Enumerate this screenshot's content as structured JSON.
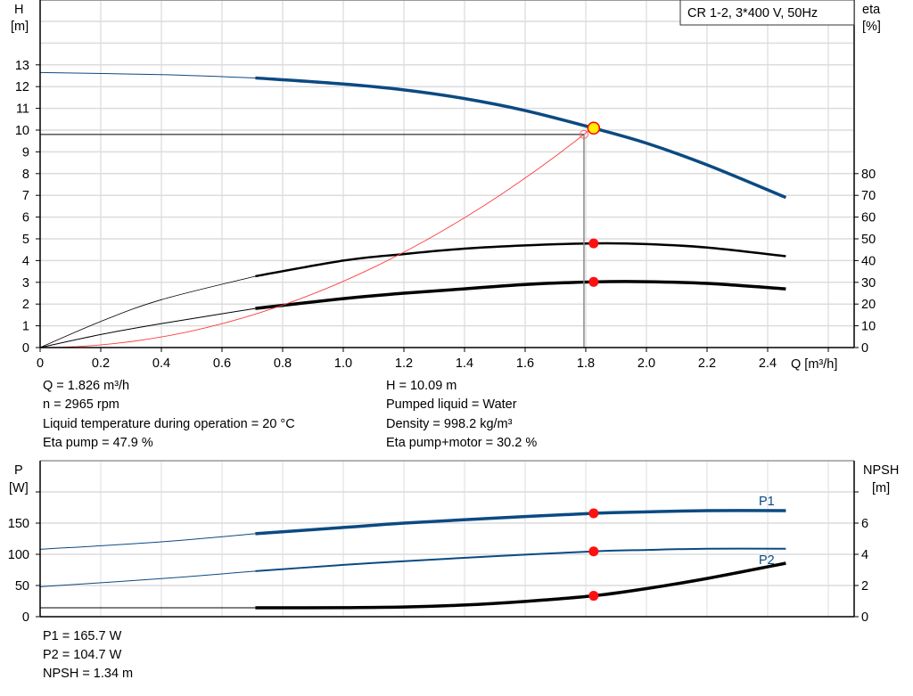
{
  "chart_data": [
    {
      "type": "line",
      "title": "CR 1-2, 3*400 V, 50Hz",
      "xlabel": "Q [m³/h]",
      "ylabel_left": [
        "H",
        "[m]"
      ],
      "ylabel_right": [
        "eta",
        "[%]"
      ],
      "xlim": [
        0,
        2.69
      ],
      "ylim_left": [
        0,
        16
      ],
      "ylim_right": [
        0,
        160
      ],
      "x_ticks": [
        "0",
        "0.2",
        "0.4",
        "0.6",
        "0.8",
        "1.0",
        "1.2",
        "1.4",
        "1.6",
        "1.8",
        "2.0",
        "2.2",
        "2.4"
      ],
      "y_ticks_left": [
        "0",
        "1",
        "2",
        "3",
        "4",
        "5",
        "6",
        "7",
        "8",
        "9",
        "10",
        "11",
        "12",
        "13"
      ],
      "y_ticks_right": [
        "0",
        "10",
        "20",
        "30",
        "40",
        "50",
        "60",
        "70",
        "80"
      ],
      "grid": true,
      "thick_from_q": 0.71,
      "series": [
        {
          "key": "H",
          "axis": "left",
          "color": "#0b4a82",
          "points": [
            [
              0,
              12.65
            ],
            [
              0.4,
              12.55
            ],
            [
              0.71,
              12.4
            ],
            [
              1.0,
              12.12
            ],
            [
              1.2,
              11.85
            ],
            [
              1.4,
              11.45
            ],
            [
              1.6,
              10.9
            ],
            [
              1.826,
              10.09
            ],
            [
              2.0,
              9.4
            ],
            [
              2.2,
              8.4
            ],
            [
              2.46,
              6.9
            ]
          ]
        },
        {
          "key": "eta_pump",
          "axis": "right",
          "color": "#000000",
          "points": [
            [
              0,
              0
            ],
            [
              0.2,
              12
            ],
            [
              0.4,
              22
            ],
            [
              0.71,
              32.8
            ],
            [
              1.0,
              40
            ],
            [
              1.2,
              43
            ],
            [
              1.4,
              45.5
            ],
            [
              1.6,
              47
            ],
            [
              1.826,
              47.9
            ],
            [
              2.0,
              47.6
            ],
            [
              2.2,
              46
            ],
            [
              2.46,
              42
            ]
          ]
        },
        {
          "key": "eta_pump_motor",
          "axis": "right",
          "color": "#000000",
          "points": [
            [
              0,
              0
            ],
            [
              0.2,
              6
            ],
            [
              0.4,
              11
            ],
            [
              0.71,
              18
            ],
            [
              1.0,
              22.5
            ],
            [
              1.2,
              25
            ],
            [
              1.4,
              27
            ],
            [
              1.6,
              29
            ],
            [
              1.826,
              30.2
            ],
            [
              2.0,
              30.3
            ],
            [
              2.2,
              29.5
            ],
            [
              2.46,
              27
            ]
          ]
        },
        {
          "key": "system",
          "axis": "left",
          "color": "#ff3b3b",
          "curve_k": 3.045,
          "q_max": 1.826
        }
      ],
      "duty_point": {
        "q": 1.826,
        "h": 10.09,
        "eta_pump": 47.9,
        "eta_pump_motor": 30.2
      },
      "reference_point": {
        "q": 1.794,
        "h": 9.8
      }
    },
    {
      "type": "line",
      "xlim": [
        0,
        2.69
      ],
      "ylabel_left": [
        "P",
        "[W]"
      ],
      "ylabel_right": [
        "NPSH",
        "[m]"
      ],
      "ylim_left": [
        0,
        250
      ],
      "ylim_right": [
        0,
        10
      ],
      "y_ticks_left": [
        "0",
        "50",
        "100",
        "150",
        ""
      ],
      "y_ticks_right": [
        "0",
        "2",
        "4",
        "6",
        ""
      ],
      "grid": true,
      "series": [
        {
          "key": "P1",
          "name": "P1",
          "axis": "left",
          "color": "#0b4a82",
          "points": [
            [
              0,
              108
            ],
            [
              0.4,
              120
            ],
            [
              0.71,
              133
            ],
            [
              1.0,
              143
            ],
            [
              1.2,
              150
            ],
            [
              1.5,
              158
            ],
            [
              1.826,
              165.7
            ],
            [
              2.0,
              168
            ],
            [
              2.2,
              170
            ],
            [
              2.46,
              170
            ]
          ]
        },
        {
          "key": "P2",
          "name": "P2",
          "axis": "left",
          "color": "#0b4a82",
          "points": [
            [
              0,
              48
            ],
            [
              0.4,
              61
            ],
            [
              0.71,
              73
            ],
            [
              1.0,
              83
            ],
            [
              1.2,
              89
            ],
            [
              1.5,
              97
            ],
            [
              1.826,
              104.7
            ],
            [
              2.0,
              107
            ],
            [
              2.2,
              109
            ],
            [
              2.46,
              109
            ]
          ]
        },
        {
          "key": "NPSH",
          "axis": "right",
          "color": "#000000",
          "points": [
            [
              0,
              0.57
            ],
            [
              0.71,
              0.57
            ],
            [
              1.0,
              0.58
            ],
            [
              1.2,
              0.62
            ],
            [
              1.4,
              0.75
            ],
            [
              1.6,
              0.98
            ],
            [
              1.826,
              1.34
            ],
            [
              2.0,
              1.8
            ],
            [
              2.2,
              2.45
            ],
            [
              2.46,
              3.43
            ]
          ]
        }
      ],
      "duty_point": {
        "q": 1.826,
        "P1": 165.7,
        "P2": 104.7,
        "NPSH": 1.34
      }
    }
  ],
  "info_top": {
    "q": "Q = 1.826 m³/h",
    "n": "n = 2965 rpm",
    "temp": "Liquid temperature during operation = 20 °C",
    "eta_pump": "Eta pump = 47.9 %",
    "h": "H = 10.09 m",
    "liquid": "Pumped liquid = Water",
    "density": "Density = 998.2 kg/m³",
    "eta_total": "Eta pump+motor = 30.2 %"
  },
  "info_bottom": {
    "p1": "P1 = 165.7 W",
    "p2": "P2 = 104.7 W",
    "npsh": "NPSH = 1.34 m"
  }
}
